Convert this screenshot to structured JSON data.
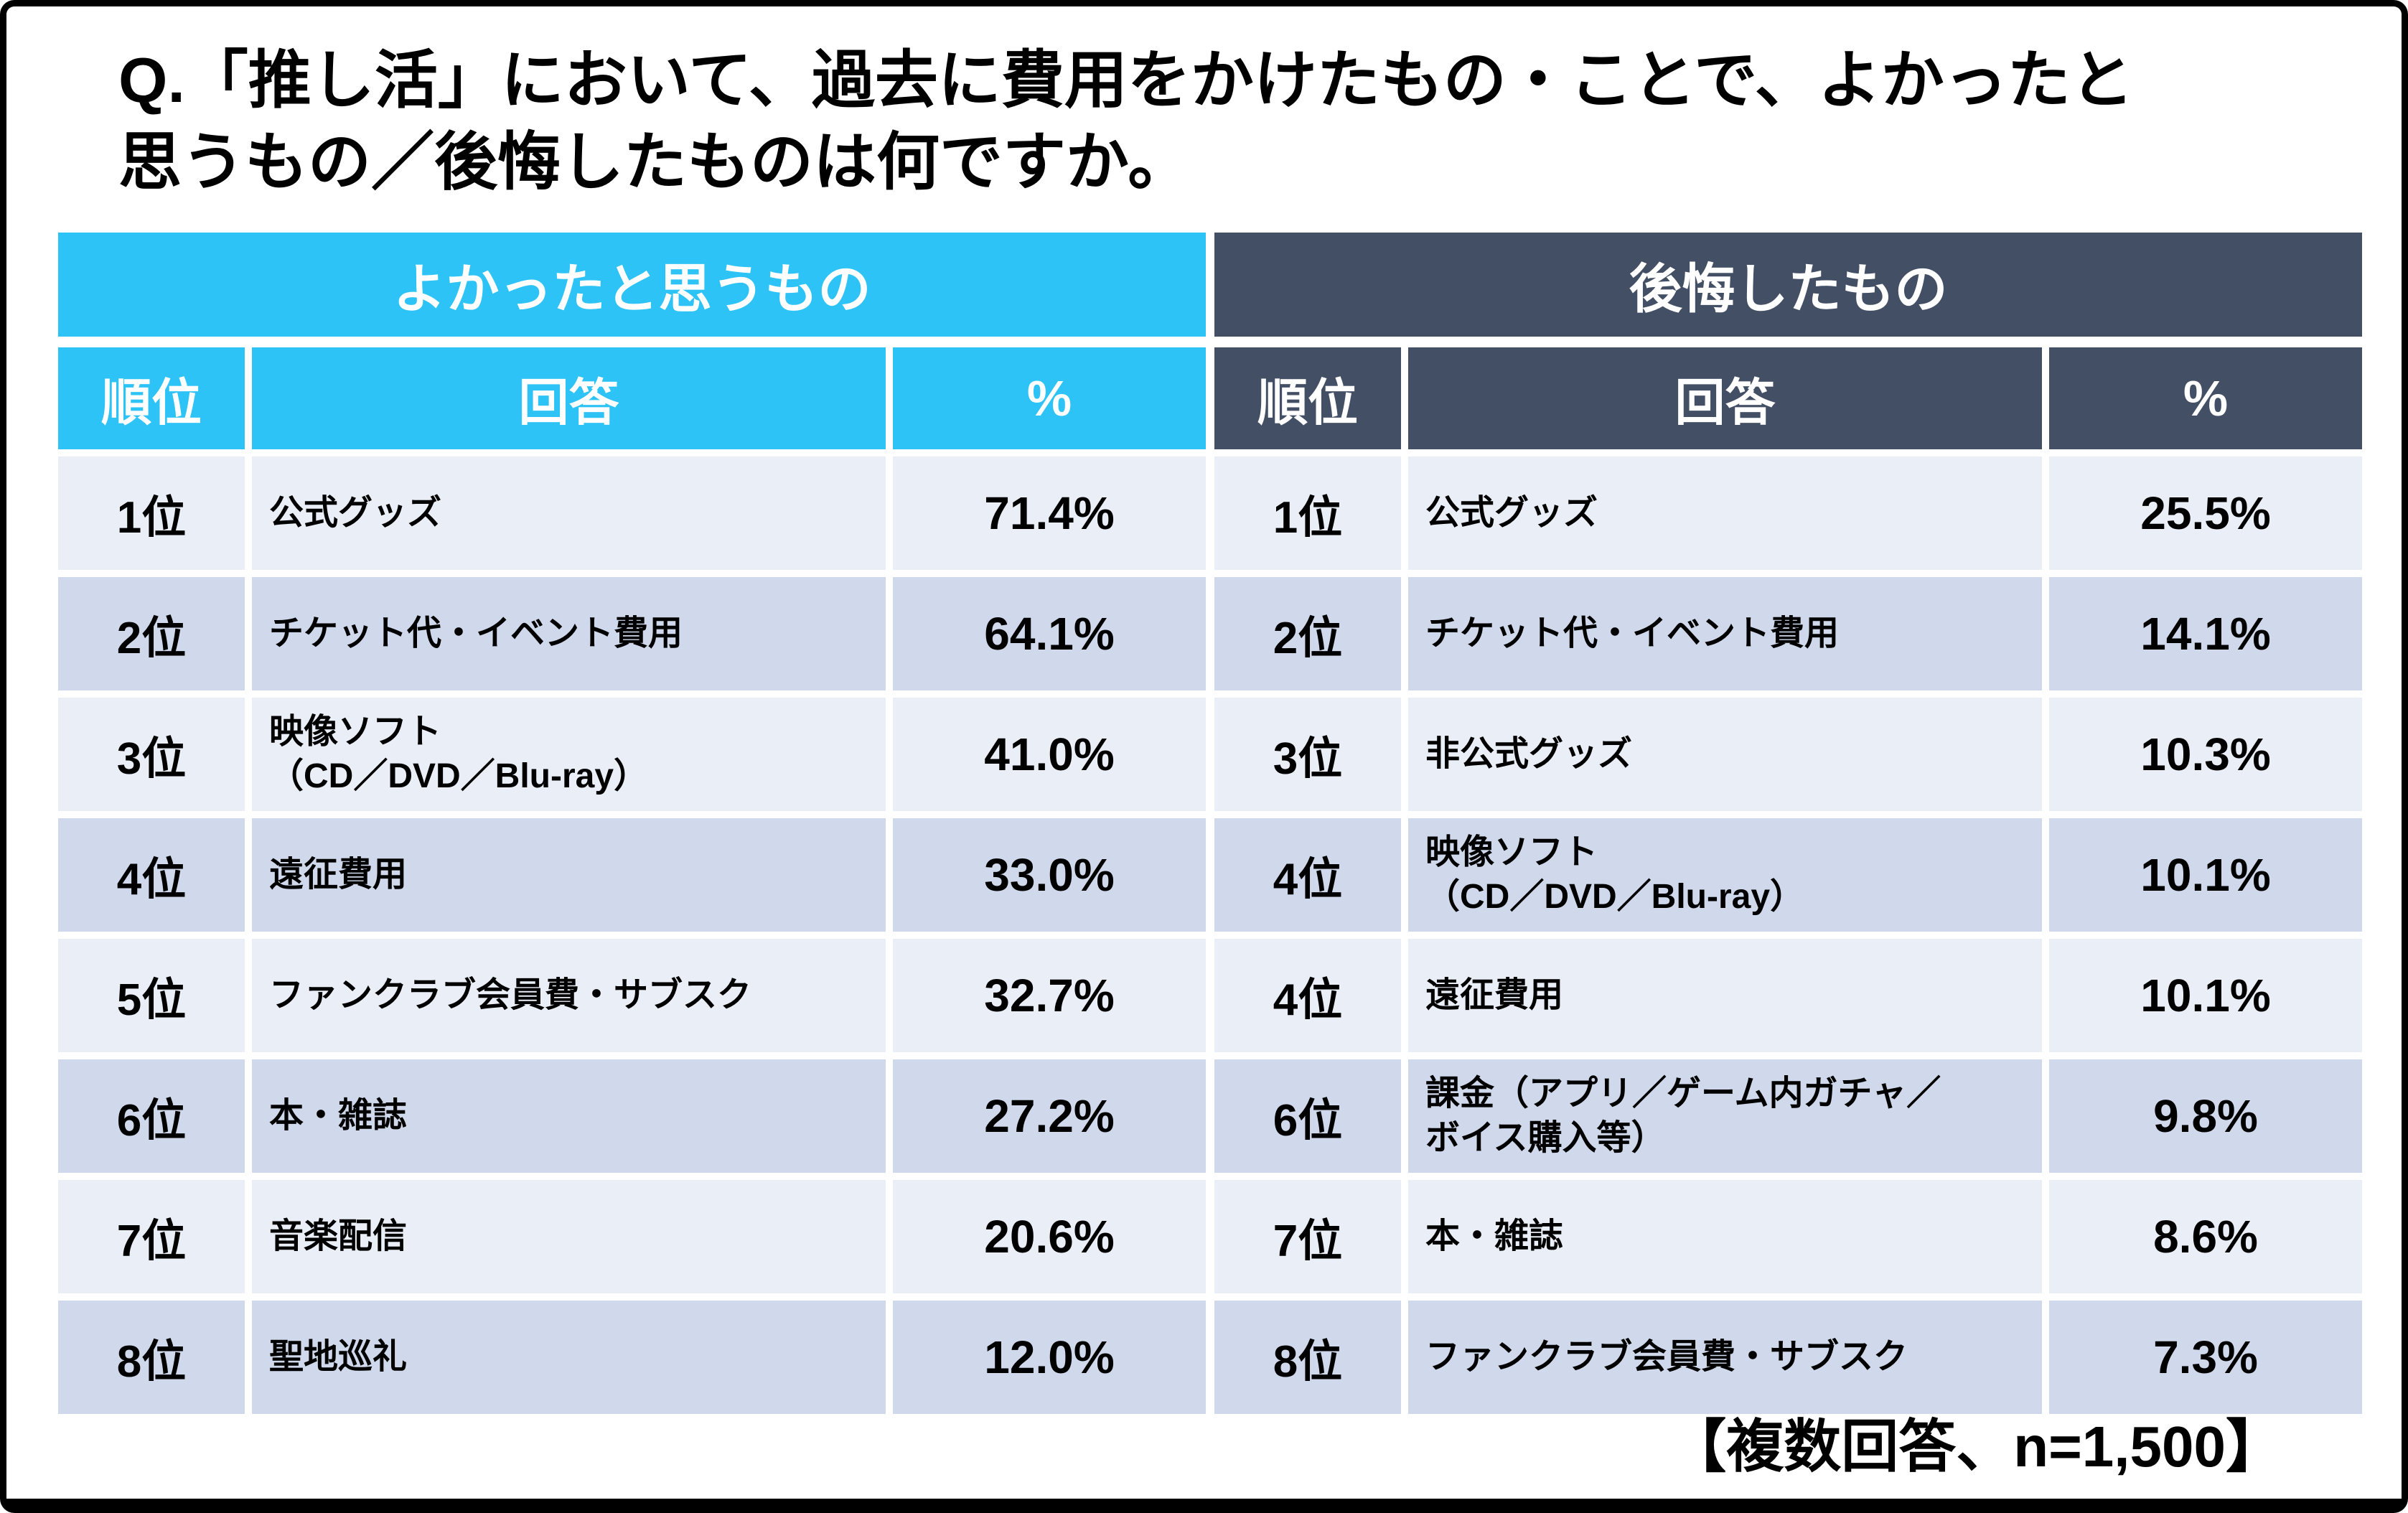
{
  "title": "Q.「推し活」において、過去に費用をかけたもの・ことで、よかったと\n思うもの／後悔したものは何ですか。",
  "footer": "【複数回答、n=1,500】",
  "colors": {
    "good_header": "#2DC3F7",
    "regret_header": "#424F64",
    "row_light": "#EAEEF7",
    "row_dark": "#CFD9EB",
    "frame": "#000000"
  },
  "columns": {
    "rank": "順位",
    "answer": "回答",
    "percent": "%"
  },
  "good_table": {
    "header": "よかったと思うもの",
    "rows": [
      {
        "rank": "1位",
        "answer": "公式グッズ",
        "percent": "71.4%"
      },
      {
        "rank": "2位",
        "answer": "チケット代・イベント費用",
        "percent": "64.1%"
      },
      {
        "rank": "3位",
        "answer": "映像ソフト\n（CD／DVD／Blu-ray）",
        "percent": "41.0%"
      },
      {
        "rank": "4位",
        "answer": "遠征費用",
        "percent": "33.0%"
      },
      {
        "rank": "5位",
        "answer": "ファンクラブ会員費・サブスク",
        "percent": "32.7%"
      },
      {
        "rank": "6位",
        "answer": "本・雑誌",
        "percent": "27.2%"
      },
      {
        "rank": "7位",
        "answer": "音楽配信",
        "percent": "20.6%"
      },
      {
        "rank": "8位",
        "answer": "聖地巡礼",
        "percent": "12.0%"
      }
    ]
  },
  "regret_table": {
    "header": "後悔したもの",
    "rows": [
      {
        "rank": "1位",
        "answer": "公式グッズ",
        "percent": "25.5%"
      },
      {
        "rank": "2位",
        "answer": "チケット代・イベント費用",
        "percent": "14.1%"
      },
      {
        "rank": "3位",
        "answer": "非公式グッズ",
        "percent": "10.3%"
      },
      {
        "rank": "4位",
        "answer": "映像ソフト\n（CD／DVD／Blu-ray）",
        "percent": "10.1%"
      },
      {
        "rank": "4位",
        "answer": "遠征費用",
        "percent": "10.1%"
      },
      {
        "rank": "6位",
        "answer": "課金（アプリ／ゲーム内ガチャ／\nボイス購入等）",
        "percent": "9.8%"
      },
      {
        "rank": "7位",
        "answer": "本・雑誌",
        "percent": "8.6%"
      },
      {
        "rank": "8位",
        "answer": "ファンクラブ会員費・サブスク",
        "percent": "7.3%"
      }
    ]
  },
  "chart_data": [
    {
      "type": "table",
      "title": "よかったと思うもの",
      "columns": [
        "順位",
        "回答",
        "%"
      ],
      "rows": [
        [
          "1位",
          "公式グッズ",
          71.4
        ],
        [
          "2位",
          "チケット代・イベント費用",
          64.1
        ],
        [
          "3位",
          "映像ソフト（CD／DVD／Blu-ray）",
          41.0
        ],
        [
          "4位",
          "遠征費用",
          33.0
        ],
        [
          "5位",
          "ファンクラブ会員費・サブスク",
          32.7
        ],
        [
          "6位",
          "本・雑誌",
          27.2
        ],
        [
          "7位",
          "音楽配信",
          20.6
        ],
        [
          "8位",
          "聖地巡礼",
          12.0
        ]
      ]
    },
    {
      "type": "table",
      "title": "後悔したもの",
      "columns": [
        "順位",
        "回答",
        "%"
      ],
      "rows": [
        [
          "1位",
          "公式グッズ",
          25.5
        ],
        [
          "2位",
          "チケット代・イベント費用",
          14.1
        ],
        [
          "3位",
          "非公式グッズ",
          10.3
        ],
        [
          "4位",
          "映像ソフト（CD／DVD／Blu-ray）",
          10.1
        ],
        [
          "4位",
          "遠征費用",
          10.1
        ],
        [
          "6位",
          "課金（アプリ／ゲーム内ガチャ／ボイス購入等）",
          9.8
        ],
        [
          "7位",
          "本・雑誌",
          8.6
        ],
        [
          "8位",
          "ファンクラブ会員費・サブスク",
          7.3
        ]
      ]
    }
  ]
}
